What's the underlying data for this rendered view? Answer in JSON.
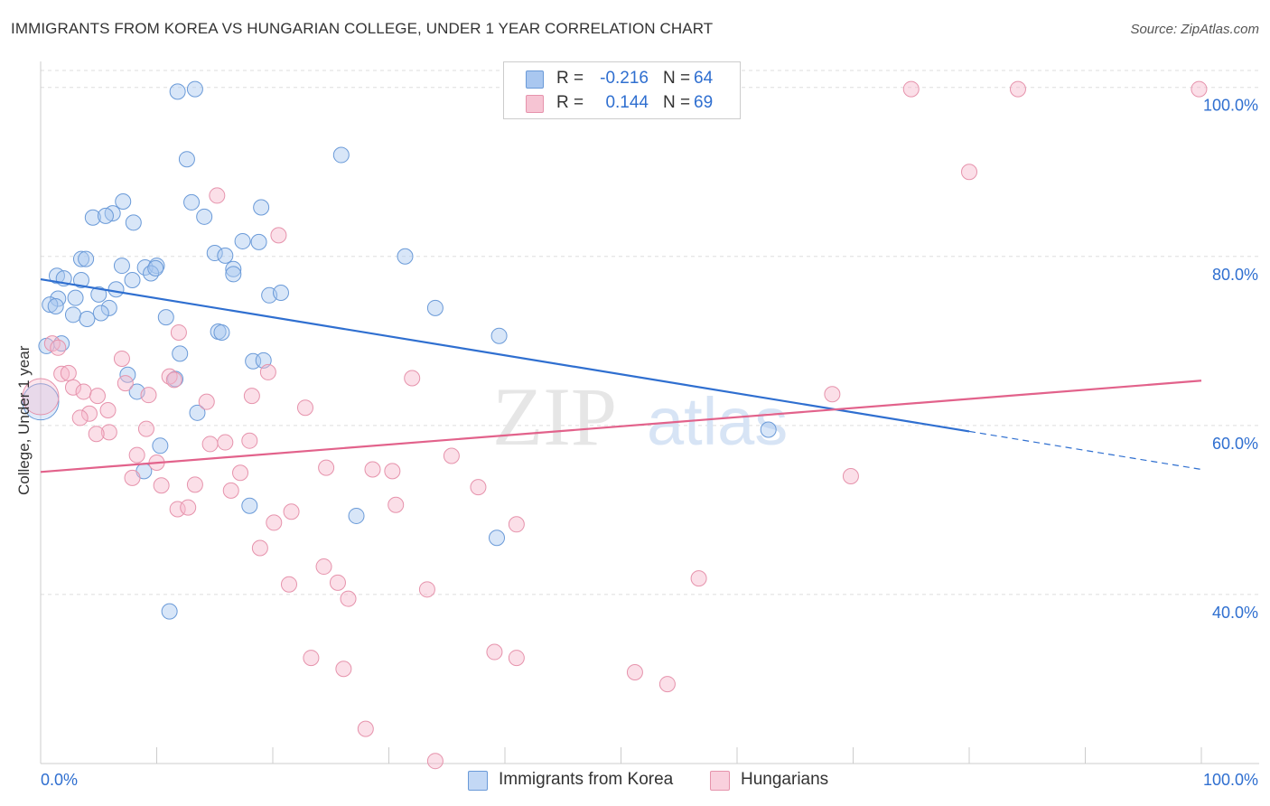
{
  "title": "IMMIGRANTS FROM KOREA VS HUNGARIAN COLLEGE, UNDER 1 YEAR CORRELATION CHART",
  "source": "Source: ZipAtlas.com",
  "watermark": {
    "zip": "ZIP",
    "atlas": "atlas"
  },
  "legend": {
    "r_label": "R =",
    "n_label": "N =",
    "series": [
      {
        "r": "-0.216",
        "n": "64"
      },
      {
        "r": "0.144",
        "n": "69"
      }
    ]
  },
  "chart_data": {
    "type": "scatter",
    "title": "IMMIGRANTS FROM KOREA VS HUNGARIAN COLLEGE, UNDER 1 YEAR CORRELATION CHART",
    "xlabel": "",
    "ylabel": "College, Under 1 year",
    "xlim": [
      0,
      100
    ],
    "ylim": [
      20,
      102
    ],
    "x_tick_labels": [
      "0.0%",
      "100.0%"
    ],
    "y_ticks": [
      40,
      60,
      80,
      100
    ],
    "y_tick_labels": [
      "40.0%",
      "60.0%",
      "80.0%",
      "100.0%"
    ],
    "grid": true,
    "legend_position": "top-center",
    "colors": {
      "korea_fill": "#a9c7f0",
      "korea_stroke": "#6a9ad8",
      "korea_line": "#2f6fd0",
      "hungarians_fill": "#f6b8cb",
      "hungarians_stroke": "#e693ac",
      "hungarians_line": "#e2628b",
      "axis_label": "#2f6fd0",
      "grid": "#dddddd"
    },
    "series": [
      {
        "name": "Immigrants from Korea",
        "r": -0.216,
        "n": 64,
        "trend": {
          "x0": 0,
          "y0": 77.3,
          "x1": 80,
          "y1": 59.3,
          "dashed_to_x": 100,
          "dashed_to_y": 54.8
        },
        "points": [
          [
            11.8,
            99.5
          ],
          [
            13.3,
            99.8
          ],
          [
            12.6,
            91.5
          ],
          [
            25.9,
            92.0
          ],
          [
            7.1,
            86.5
          ],
          [
            13.0,
            86.4
          ],
          [
            19.0,
            85.8
          ],
          [
            6.2,
            85.1
          ],
          [
            4.5,
            84.6
          ],
          [
            5.6,
            84.8
          ],
          [
            8.0,
            84.0
          ],
          [
            14.1,
            84.7
          ],
          [
            17.4,
            81.8
          ],
          [
            18.8,
            81.7
          ],
          [
            7.0,
            78.9
          ],
          [
            9.0,
            78.7
          ],
          [
            10.0,
            78.9
          ],
          [
            15.0,
            80.4
          ],
          [
            15.9,
            80.1
          ],
          [
            16.6,
            78.5
          ],
          [
            16.6,
            77.9
          ],
          [
            31.4,
            80.0
          ],
          [
            3.5,
            79.7
          ],
          [
            3.9,
            79.7
          ],
          [
            1.4,
            77.7
          ],
          [
            2.0,
            77.4
          ],
          [
            3.5,
            77.2
          ],
          [
            7.9,
            77.2
          ],
          [
            9.5,
            78.0
          ],
          [
            9.9,
            78.6
          ],
          [
            6.5,
            76.1
          ],
          [
            5.0,
            75.5
          ],
          [
            1.5,
            75.0
          ],
          [
            3.0,
            75.1
          ],
          [
            0.8,
            74.3
          ],
          [
            1.3,
            74.1
          ],
          [
            19.7,
            75.4
          ],
          [
            20.7,
            75.7
          ],
          [
            34.0,
            73.9
          ],
          [
            5.9,
            73.9
          ],
          [
            5.2,
            73.3
          ],
          [
            2.8,
            73.1
          ],
          [
            4.0,
            72.6
          ],
          [
            10.8,
            72.8
          ],
          [
            15.3,
            71.1
          ],
          [
            15.6,
            71.0
          ],
          [
            39.5,
            70.6
          ],
          [
            1.8,
            69.7
          ],
          [
            0.5,
            69.4
          ],
          [
            12.0,
            68.5
          ],
          [
            18.3,
            67.6
          ],
          [
            19.2,
            67.7
          ],
          [
            7.5,
            66.0
          ],
          [
            11.6,
            65.5
          ],
          [
            8.3,
            64.0
          ],
          [
            13.5,
            61.5
          ],
          [
            10.3,
            57.6
          ],
          [
            8.9,
            54.6
          ],
          [
            62.7,
            59.5
          ],
          [
            18.0,
            50.5
          ],
          [
            27.2,
            49.3
          ],
          [
            39.3,
            46.7
          ],
          [
            11.1,
            38.0
          ],
          [
            0.0,
            62.8
          ]
        ]
      },
      {
        "name": "Hungarians",
        "r": 0.144,
        "n": 69,
        "trend": {
          "x0": 0,
          "y0": 54.5,
          "x1": 100,
          "y1": 65.3
        },
        "points": [
          [
            75.0,
            99.8
          ],
          [
            84.2,
            99.8
          ],
          [
            99.8,
            99.8
          ],
          [
            80.0,
            90.0
          ],
          [
            15.2,
            87.2
          ],
          [
            20.5,
            82.5
          ],
          [
            11.9,
            71.0
          ],
          [
            1.0,
            69.7
          ],
          [
            1.5,
            69.2
          ],
          [
            7.0,
            67.9
          ],
          [
            19.6,
            66.3
          ],
          [
            1.8,
            66.1
          ],
          [
            2.4,
            66.2
          ],
          [
            11.1,
            65.8
          ],
          [
            11.5,
            65.4
          ],
          [
            32.0,
            65.6
          ],
          [
            7.3,
            65.0
          ],
          [
            2.8,
            64.5
          ],
          [
            3.7,
            64.0
          ],
          [
            4.9,
            63.5
          ],
          [
            9.3,
            63.6
          ],
          [
            18.2,
            63.5
          ],
          [
            14.3,
            62.8
          ],
          [
            22.8,
            62.1
          ],
          [
            5.8,
            61.8
          ],
          [
            4.2,
            61.4
          ],
          [
            3.4,
            60.9
          ],
          [
            9.1,
            59.6
          ],
          [
            5.9,
            59.2
          ],
          [
            4.8,
            59.0
          ],
          [
            68.2,
            63.7
          ],
          [
            14.6,
            57.8
          ],
          [
            15.9,
            58.0
          ],
          [
            18.0,
            58.2
          ],
          [
            8.3,
            56.5
          ],
          [
            10.0,
            55.6
          ],
          [
            24.6,
            55.0
          ],
          [
            28.6,
            54.8
          ],
          [
            30.3,
            54.6
          ],
          [
            35.4,
            56.4
          ],
          [
            17.2,
            54.4
          ],
          [
            7.9,
            53.8
          ],
          [
            10.4,
            52.9
          ],
          [
            13.3,
            53.0
          ],
          [
            16.4,
            52.3
          ],
          [
            37.7,
            52.7
          ],
          [
            69.8,
            54.0
          ],
          [
            11.8,
            50.1
          ],
          [
            12.7,
            50.3
          ],
          [
            30.6,
            50.6
          ],
          [
            21.6,
            49.8
          ],
          [
            20.1,
            48.5
          ],
          [
            41.0,
            48.3
          ],
          [
            18.9,
            45.5
          ],
          [
            24.4,
            43.3
          ],
          [
            25.6,
            41.4
          ],
          [
            21.4,
            41.2
          ],
          [
            33.3,
            40.6
          ],
          [
            56.7,
            41.9
          ],
          [
            26.5,
            39.5
          ],
          [
            23.3,
            32.5
          ],
          [
            39.1,
            33.2
          ],
          [
            41.0,
            32.5
          ],
          [
            26.1,
            31.2
          ],
          [
            51.2,
            30.8
          ],
          [
            54.0,
            29.4
          ],
          [
            28.0,
            24.1
          ],
          [
            34.0,
            20.3
          ],
          [
            0.0,
            63.4
          ]
        ]
      }
    ]
  },
  "bottom_legend": [
    "Immigrants from Korea",
    "Hungarians"
  ]
}
